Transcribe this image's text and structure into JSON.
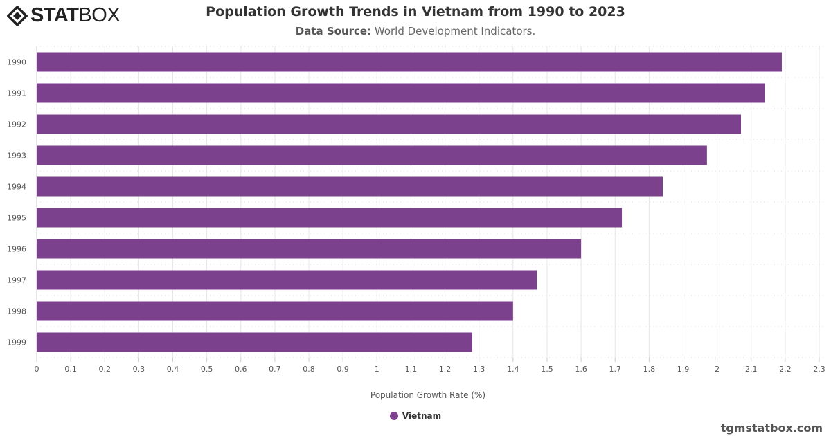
{
  "logo": {
    "bold": "STAT",
    "light": "BOX"
  },
  "title": "Population Growth Trends in Vietnam from 1990 to 2023",
  "subtitle": {
    "label": "Data Source:",
    "text": "World Development Indicators."
  },
  "credit": "tgmstatbox.com",
  "chart_data": {
    "type": "bar",
    "orientation": "horizontal",
    "categories": [
      "1990",
      "1991",
      "1992",
      "1993",
      "1994",
      "1995",
      "1996",
      "1997",
      "1998",
      "1999"
    ],
    "series": [
      {
        "name": "Vietnam",
        "color": "#7b418d",
        "values": [
          2.19,
          2.14,
          2.07,
          1.97,
          1.84,
          1.72,
          1.6,
          1.47,
          1.4,
          1.28
        ]
      }
    ],
    "xlabel": "Population Growth Rate (%)",
    "xlim": [
      0,
      2.3
    ],
    "xticks": [
      "0",
      "0.1",
      "0.2",
      "0.3",
      "0.4",
      "0.5",
      "0.6",
      "0.7",
      "0.8",
      "0.9",
      "1",
      "1.1",
      "1.2",
      "1.3",
      "1.4",
      "1.5",
      "1.6",
      "1.7",
      "1.8",
      "1.9",
      "2",
      "2.1",
      "2.2",
      "2.3"
    ],
    "grid": true,
    "legend": "bottom-center"
  }
}
